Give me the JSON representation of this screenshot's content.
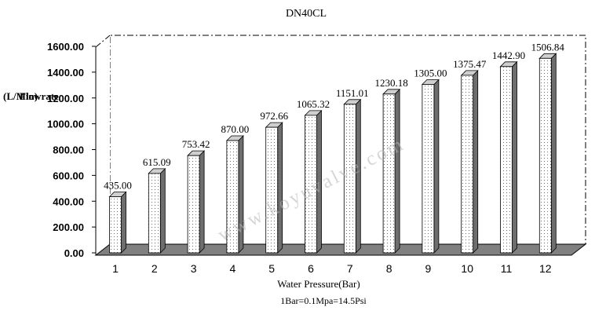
{
  "chart_data": {
    "type": "bar",
    "title": "DN40CL",
    "xlabel": "Water Pressure(Bar)",
    "xlabel_note": "1Bar=0.1Mpa=14.5Psi",
    "ylabel": "Flowrate (L/Min)",
    "ylabel_flow": "Flowrate",
    "ylabel_unit": "(L/Min)",
    "categories": [
      "1",
      "2",
      "3",
      "4",
      "5",
      "6",
      "7",
      "8",
      "9",
      "10",
      "11",
      "12"
    ],
    "values": [
      435.0,
      615.09,
      753.42,
      870.0,
      972.66,
      1065.32,
      1151.01,
      1230.18,
      1305.0,
      1375.47,
      1442.9,
      1506.84
    ],
    "value_labels": [
      "435.00",
      "615.09",
      "753.42",
      "870.00",
      "972.66",
      "1065.32",
      "1151.01",
      "1230.18",
      "1305.00",
      "1375.47",
      "1442.90",
      "1506.84"
    ],
    "y_ticks": [
      "0.00",
      "200.00",
      "400.00",
      "600.00",
      "800.00",
      "1000.00",
      "1200.00",
      "1400.00",
      "1600.00"
    ],
    "ylim": [
      0,
      1600
    ],
    "grid": false,
    "legend": "none",
    "style": "3d",
    "watermark": "www.koyuvalve.com",
    "colors": {
      "bar_face": "#ffffff",
      "bar_pattern": "#707070",
      "bar_top": "#cfcfcf",
      "bar_side": "#6e6e6e",
      "floor": "#808080",
      "outline": "#000000",
      "text": "#000000"
    }
  }
}
